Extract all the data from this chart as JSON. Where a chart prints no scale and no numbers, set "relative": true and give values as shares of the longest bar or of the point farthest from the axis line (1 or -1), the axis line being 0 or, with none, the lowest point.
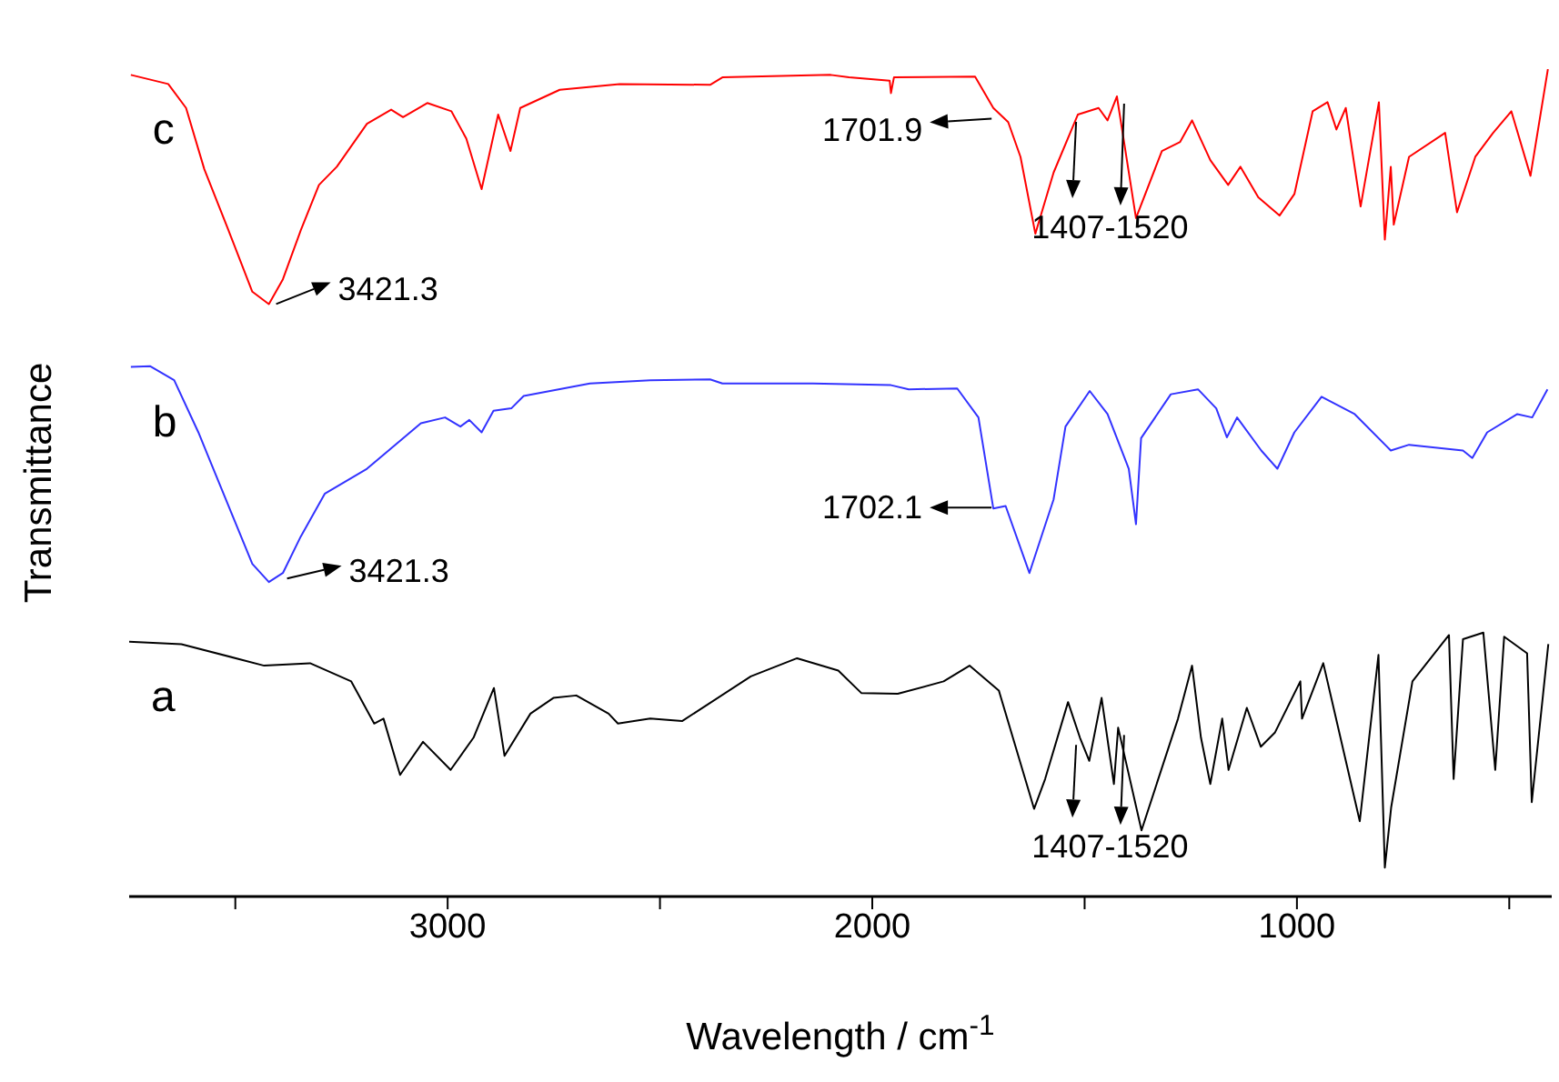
{
  "chart_data": {
    "type": "line",
    "xlabel": "Wavelength / cm$^{-1}$",
    "ylabel": "Transmittance",
    "relative": true,
    "xlim": [
      3750,
      400
    ],
    "xticks": [
      {
        "value": 3500,
        "label": null
      },
      3000,
      {
        "value": 2500,
        "label": null
      },
      2000,
      {
        "value": 1500,
        "label": null
      },
      1000,
      {
        "value": 500,
        "label": null
      }
    ],
    "annotations": [
      {
        "text": "3421.3",
        "x": 3421,
        "y": 0.716
      },
      {
        "text": "1701.9",
        "x": 1701.9,
        "y": 0.94
      },
      "1407-1520",
      {
        "text": "3421.3",
        "x": 3421,
        "y": 0.38
      },
      {
        "text": "1702.1",
        "x": 1702.1,
        "y": 0.47
      },
      "1407-1520"
    ],
    "series": [
      {
        "name": "a",
        "color": "#000000",
        "x": [
          3750,
          3627,
          3432,
          3324,
          3227,
          3173,
          3151,
          3112,
          3058,
          2993,
          2939,
          2891,
          2866,
          2805,
          2751,
          2697,
          2621,
          2599,
          2523,
          2448,
          2286,
          2177,
          2080,
          2026,
          1940,
          1832,
          1771,
          1702,
          1619,
          1593,
          1539,
          1511,
          1489,
          1460,
          1431,
          1421,
          1366,
          1280,
          1247,
          1226,
          1204,
          1176,
          1161,
          1118,
          1085,
          1052,
          992,
          988,
          938,
          852,
          808,
          793,
          778,
          728,
          642,
          631,
          609,
          561,
          533,
          512,
          458,
          447,
          408
        ],
        "values": [
          0.308,
          0.305,
          0.279,
          0.282,
          0.26,
          0.209,
          0.215,
          0.147,
          0.187,
          0.153,
          0.192,
          0.252,
          0.17,
          0.221,
          0.24,
          0.243,
          0.221,
          0.209,
          0.215,
          0.212,
          0.266,
          0.288,
          0.273,
          0.246,
          0.245,
          0.26,
          0.279,
          0.249,
          0.106,
          0.142,
          0.235,
          0.192,
          0.164,
          0.24,
          0.136,
          0.204,
          0.08,
          0.215,
          0.279,
          0.192,
          0.136,
          0.215,
          0.153,
          0.228,
          0.181,
          0.198,
          0.26,
          0.215,
          0.282,
          0.091,
          0.292,
          0.035,
          0.108,
          0.26,
          0.316,
          0.142,
          0.311,
          0.319,
          0.153,
          0.314,
          0.294,
          0.114,
          0.305
        ]
      },
      {
        "name": "b",
        "color": "#3333ff",
        "x": [
          3746,
          3701,
          3644,
          3587,
          3516,
          3460,
          3421,
          3388,
          3346,
          3289,
          3190,
          3063,
          3006,
          2970,
          2949,
          2920,
          2892,
          2850,
          2821,
          2665,
          2523,
          2382,
          2353,
          2140,
          1956,
          1914,
          1800,
          1750,
          1715,
          1686,
          1630,
          1573,
          1545,
          1488,
          1446,
          1396,
          1379,
          1367,
          1297,
          1233,
          1190,
          1165,
          1141,
          1084,
          1046,
          1006,
          942,
          864,
          779,
          736,
          609,
          587,
          552,
          481,
          446,
          410
        ],
        "values": [
          0.64,
          0.641,
          0.624,
          0.561,
          0.472,
          0.402,
          0.38,
          0.391,
          0.435,
          0.487,
          0.517,
          0.572,
          0.579,
          0.568,
          0.576,
          0.561,
          0.587,
          0.59,
          0.605,
          0.62,
          0.624,
          0.625,
          0.62,
          0.62,
          0.618,
          0.613,
          0.614,
          0.579,
          0.469,
          0.472,
          0.391,
          0.48,
          0.568,
          0.611,
          0.583,
          0.517,
          0.45,
          0.554,
          0.607,
          0.613,
          0.59,
          0.555,
          0.579,
          0.539,
          0.517,
          0.561,
          0.604,
          0.583,
          0.539,
          0.546,
          0.539,
          0.53,
          0.561,
          0.583,
          0.579,
          0.613
        ]
      },
      {
        "name": "c",
        "color": "#ff0000",
        "x": [
          3746,
          3658,
          3616,
          3573,
          3516,
          3460,
          3421,
          3388,
          3346,
          3303,
          3261,
          3190,
          3133,
          3105,
          3048,
          2991,
          2956,
          2920,
          2881,
          2852,
          2829,
          2736,
          2595,
          2382,
          2353,
          2098,
          2055,
          1959,
          1956,
          1949,
          1758,
          1715,
          1680,
          1651,
          1616,
          1573,
          1516,
          1467,
          1446,
          1424,
          1379,
          1318,
          1275,
          1247,
          1204,
          1162,
          1133,
          1091,
          1041,
          1006,
          963,
          928,
          907,
          885,
          850,
          807,
          793,
          779,
          772,
          736,
          651,
          623,
          580,
          538,
          495,
          450,
          409
        ],
        "values": [
          0.993,
          0.982,
          0.953,
          0.879,
          0.805,
          0.731,
          0.716,
          0.746,
          0.805,
          0.86,
          0.882,
          0.934,
          0.951,
          0.942,
          0.959,
          0.949,
          0.916,
          0.855,
          0.945,
          0.901,
          0.953,
          0.975,
          0.982,
          0.981,
          0.99,
          0.993,
          0.99,
          0.986,
          0.971,
          0.99,
          0.991,
          0.953,
          0.936,
          0.894,
          0.801,
          0.875,
          0.945,
          0.953,
          0.938,
          0.967,
          0.82,
          0.901,
          0.912,
          0.938,
          0.89,
          0.86,
          0.882,
          0.845,
          0.823,
          0.849,
          0.949,
          0.96,
          0.927,
          0.953,
          0.834,
          0.96,
          0.794,
          0.882,
          0.812,
          0.894,
          0.923,
          0.827,
          0.894,
          0.923,
          0.949,
          0.871,
          1.0
        ]
      }
    ]
  }
}
